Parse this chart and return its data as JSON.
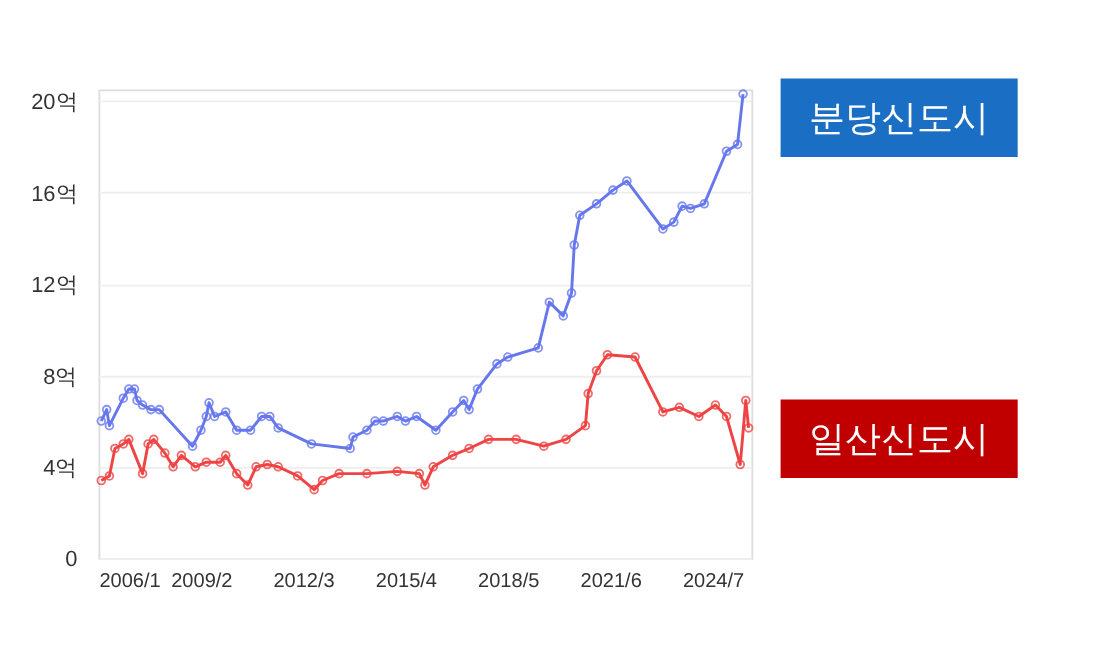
{
  "chart_data": {
    "type": "line",
    "marker": "circle",
    "grid": "y",
    "legend": "right",
    "xlim": [
      "2006-01",
      "2025-09"
    ],
    "xticks": [
      {
        "value": "2006-01",
        "label": "2006/1"
      },
      {
        "value": "2009-02",
        "label": "2009/2"
      },
      {
        "value": "2012-03",
        "label": "2012/3"
      },
      {
        "value": "2015-04",
        "label": "2015/4"
      },
      {
        "value": "2018-05",
        "label": "2018/5"
      },
      {
        "value": "2021-06",
        "label": "2021/6"
      },
      {
        "value": "2024-07",
        "label": "2024/7"
      }
    ],
    "ylim": [
      0,
      20.5
    ],
    "yticks": [
      0,
      {
        "value": 4,
        "label": "4억"
      },
      {
        "value": 8,
        "label": "8억"
      },
      {
        "value": 12,
        "label": "12억"
      },
      {
        "value": 16,
        "label": "16억"
      },
      {
        "value": 20,
        "label": "20억"
      }
    ],
    "series": [
      {
        "name": "분당신도시",
        "color": "#6677ee",
        "x": [
          "2006-02",
          "2006-04",
          "2006-05",
          "2006-10",
          "2006-12",
          "2007-02",
          "2007-03",
          "2007-05",
          "2007-08",
          "2007-11",
          "2008-11",
          "2009-02",
          "2009-04",
          "2009-05",
          "2009-07",
          "2009-11",
          "2010-03",
          "2010-08",
          "2010-12",
          "2011-03",
          "2011-06",
          "2012-06",
          "2013-08",
          "2013-09",
          "2014-02",
          "2014-05",
          "2014-08",
          "2015-01",
          "2015-04",
          "2015-08",
          "2016-03",
          "2016-09",
          "2017-01",
          "2017-03",
          "2017-06",
          "2018-01",
          "2018-05",
          "2019-04",
          "2019-08",
          "2020-01",
          "2020-04",
          "2020-05",
          "2020-07",
          "2021-01",
          "2021-07",
          "2021-12",
          "2023-01",
          "2023-05",
          "2023-08",
          "2023-11",
          "2024-04",
          "2024-12",
          "2025-04",
          "2025-06"
        ],
        "values": [
          6.0,
          6.5,
          5.8,
          7.0,
          7.4,
          7.4,
          6.9,
          6.7,
          6.5,
          6.5,
          4.9,
          5.6,
          6.2,
          6.8,
          6.2,
          6.4,
          5.6,
          5.6,
          6.2,
          6.2,
          5.7,
          5.0,
          4.8,
          5.3,
          5.6,
          6.0,
          6.0,
          6.2,
          6.0,
          6.2,
          5.6,
          6.4,
          6.9,
          6.5,
          7.4,
          8.5,
          8.8,
          9.2,
          11.2,
          10.6,
          11.6,
          13.7,
          15.0,
          15.5,
          16.1,
          16.5,
          14.4,
          14.7,
          15.4,
          15.3,
          15.5,
          17.8,
          18.1,
          20.3
        ]
      },
      {
        "name": "일산신도시",
        "color": "#ee4444",
        "x": [
          "2006-02",
          "2006-05",
          "2006-07",
          "2006-10",
          "2006-12",
          "2007-05",
          "2007-07",
          "2007-09",
          "2008-01",
          "2008-04",
          "2008-07",
          "2008-12",
          "2009-04",
          "2009-09",
          "2009-11",
          "2010-03",
          "2010-07",
          "2010-10",
          "2011-02",
          "2011-06",
          "2012-01",
          "2012-07",
          "2012-10",
          "2013-04",
          "2014-02",
          "2015-01",
          "2015-09",
          "2015-11",
          "2016-02",
          "2016-09",
          "2017-03",
          "2017-10",
          "2018-08",
          "2019-06",
          "2020-02",
          "2020-09",
          "2020-10",
          "2021-01",
          "2021-05",
          "2022-03",
          "2023-01",
          "2023-07",
          "2024-02",
          "2024-08",
          "2024-12",
          "2025-05",
          "2025-07",
          "2025-08"
        ],
        "values": [
          3.4,
          3.6,
          4.8,
          5.0,
          5.2,
          3.7,
          5.0,
          5.2,
          4.6,
          4.0,
          4.5,
          4.0,
          4.2,
          4.2,
          4.5,
          3.7,
          3.2,
          4.0,
          4.1,
          4.0,
          3.6,
          3.0,
          3.4,
          3.7,
          3.7,
          3.8,
          3.7,
          3.2,
          4.0,
          4.5,
          4.8,
          5.2,
          5.2,
          4.9,
          5.2,
          5.8,
          7.2,
          8.2,
          8.9,
          8.8,
          6.4,
          6.6,
          6.2,
          6.7,
          6.2,
          4.1,
          6.9,
          5.7
        ]
      }
    ]
  }
}
